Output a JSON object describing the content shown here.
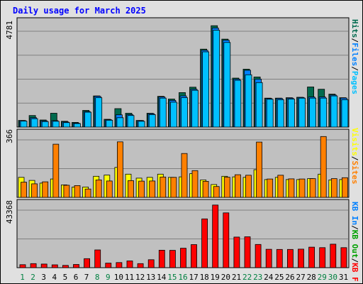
{
  "title": "Daily usage for March 2025",
  "colors": {
    "hits": "#006a4e",
    "files": "#0080ff",
    "pages": "#00c0ff",
    "visits": "#ffff00",
    "sites": "#ff8000",
    "kb_in": "#0080ff",
    "kb_out": "#00a000",
    "kb_f": "#ff0000",
    "weekend_day": "#008040",
    "weekday_day": "#000000"
  },
  "chart_data": [
    {
      "type": "bar",
      "ylim": [
        0,
        4781
      ],
      "ymax_label": "4781",
      "categories": [
        "1",
        "2",
        "3",
        "4",
        "5",
        "6",
        "7",
        "8",
        "9",
        "10",
        "11",
        "12",
        "13",
        "14",
        "15",
        "16",
        "17",
        "18",
        "19",
        "20",
        "21",
        "22",
        "23",
        "24",
        "25",
        "26",
        "27",
        "28",
        "29",
        "30",
        "31"
      ],
      "series": [
        {
          "name": "Hits",
          "values": [
            300,
            520,
            320,
            620,
            260,
            210,
            750,
            1400,
            350,
            830,
            620,
            300,
            620,
            1380,
            1260,
            1550,
            1790,
            3500,
            4550,
            3950,
            2200,
            2600,
            2250,
            1300,
            1300,
            1320,
            1340,
            1800,
            1700,
            1480,
            1320
          ]
        },
        {
          "name": "Files",
          "values": [
            290,
            420,
            280,
            290,
            230,
            180,
            700,
            1380,
            330,
            550,
            560,
            290,
            600,
            1350,
            1200,
            1400,
            1700,
            3450,
            4450,
            3900,
            2150,
            2550,
            2150,
            1280,
            1280,
            1300,
            1330,
            1350,
            1350,
            1440,
            1300
          ]
        },
        {
          "name": "Pages",
          "values": [
            270,
            380,
            250,
            260,
            200,
            160,
            670,
            1320,
            310,
            420,
            520,
            260,
            560,
            1300,
            1120,
            1320,
            1650,
            3380,
            4350,
            3800,
            2100,
            2350,
            2000,
            1250,
            1230,
            1260,
            1300,
            1300,
            1300,
            1400,
            1230
          ]
        }
      ]
    },
    {
      "type": "bar",
      "ylim": [
        0,
        366
      ],
      "ymax_label": "366",
      "categories": [
        "1",
        "2",
        "3",
        "4",
        "5",
        "6",
        "7",
        "8",
        "9",
        "10",
        "11",
        "12",
        "13",
        "14",
        "15",
        "16",
        "17",
        "18",
        "19",
        "20",
        "21",
        "22",
        "23",
        "24",
        "25",
        "26",
        "27",
        "28",
        "29",
        "30",
        "31"
      ],
      "series": [
        {
          "name": "Visits",
          "values": [
            112,
            95,
            80,
            103,
            70,
            58,
            58,
            118,
            125,
            168,
            130,
            108,
            112,
            130,
            112,
            115,
            133,
            98,
            72,
            118,
            115,
            112,
            155,
            100,
            112,
            100,
            100,
            105,
            130,
            98,
            100
          ]
        },
        {
          "name": "Sites",
          "values": [
            85,
            76,
            87,
            298,
            68,
            66,
            47,
            98,
            92,
            311,
            94,
            91,
            92,
            114,
            112,
            246,
            150,
            90,
            61,
            113,
            127,
            124,
            310,
            103,
            124,
            104,
            103,
            105,
            341,
            105,
            110
          ]
        }
      ]
    },
    {
      "type": "bar",
      "ylim": [
        0,
        43368
      ],
      "ymax_label": "43368",
      "categories": [
        "1",
        "2",
        "3",
        "4",
        "5",
        "6",
        "7",
        "8",
        "9",
        "10",
        "11",
        "12",
        "13",
        "14",
        "15",
        "16",
        "17",
        "18",
        "19",
        "20",
        "21",
        "22",
        "23",
        "24",
        "25",
        "26",
        "27",
        "28",
        "29",
        "30",
        "31"
      ],
      "series": [
        {
          "name": "KB F",
          "values": [
            2000,
            2700,
            2400,
            1900,
            1500,
            2100,
            6000,
            11800,
            3000,
            3400,
            4500,
            2700,
            5300,
            11600,
            11500,
            12900,
            15300,
            32400,
            41600,
            36400,
            20300,
            20500,
            15400,
            12200,
            12100,
            12100,
            12300,
            13600,
            13300,
            15600,
            13300
          ]
        }
      ]
    }
  ],
  "days": [
    "1",
    "2",
    "3",
    "4",
    "5",
    "6",
    "7",
    "8",
    "9",
    "10",
    "11",
    "12",
    "13",
    "14",
    "15",
    "16",
    "17",
    "18",
    "19",
    "20",
    "21",
    "22",
    "23",
    "24",
    "25",
    "26",
    "27",
    "28",
    "29",
    "30",
    "31"
  ],
  "weekend_days": [
    "1",
    "2",
    "8",
    "9",
    "15",
    "16",
    "22",
    "23",
    "29",
    "30"
  ],
  "legend_top": [
    {
      "text": "Pages",
      "color": "#00c0ff"
    },
    {
      "text": "/",
      "color": "#000000"
    },
    {
      "text": "Files",
      "color": "#0080ff"
    },
    {
      "text": "/",
      "color": "#000000"
    },
    {
      "text": "Hits",
      "color": "#006a4e"
    }
  ],
  "legend_mid": [
    {
      "text": "Sites",
      "color": "#ff8000"
    },
    {
      "text": "/",
      "color": "#000000"
    },
    {
      "text": "Visits",
      "color": "#ffff00"
    }
  ],
  "legend_bot": [
    {
      "text": "KB F",
      "color": "#ff0000"
    },
    {
      "text": "/",
      "color": "#000000"
    },
    {
      "text": "KB Out",
      "color": "#00a000"
    },
    {
      "text": "/",
      "color": "#000000"
    },
    {
      "text": "KB In",
      "color": "#0080ff"
    }
  ]
}
